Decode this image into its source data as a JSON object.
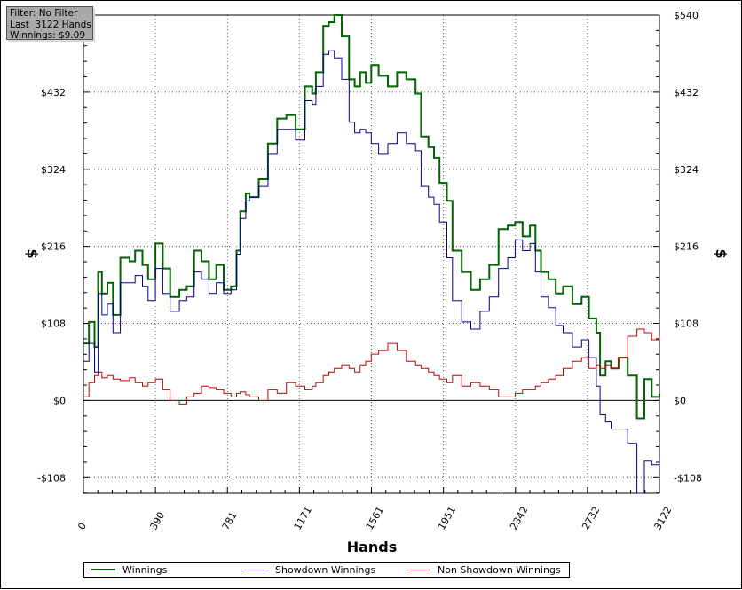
{
  "info_box": {
    "line1": "Filter: No Filter",
    "line2": "Last  3122 Hands",
    "line3": "Winnings: $9.09"
  },
  "chart_data": {
    "type": "line",
    "xlabel": "Hands",
    "ylabel": "$",
    "x_ticks": [
      0,
      390,
      781,
      1171,
      1561,
      1951,
      2342,
      2732,
      3122
    ],
    "y_ticks": [
      -108,
      0,
      108,
      216,
      324,
      432,
      540
    ],
    "y_tick_labels": [
      "-$108",
      "$0",
      "$108",
      "$216",
      "$324",
      "$432",
      "$540"
    ],
    "xlim": [
      0,
      3122
    ],
    "ylim": [
      -130,
      540
    ],
    "grid": true,
    "legend_position": "bottom",
    "series": [
      {
        "name": "Winnings",
        "color": "#006400",
        "x": [
          0,
          30,
          60,
          80,
          100,
          130,
          160,
          200,
          250,
          280,
          320,
          350,
          390,
          430,
          470,
          520,
          560,
          600,
          640,
          680,
          720,
          760,
          800,
          830,
          850,
          880,
          900,
          950,
          1000,
          1050,
          1100,
          1150,
          1200,
          1240,
          1260,
          1300,
          1330,
          1360,
          1400,
          1440,
          1470,
          1500,
          1530,
          1560,
          1600,
          1650,
          1700,
          1750,
          1800,
          1830,
          1870,
          1900,
          1930,
          1970,
          2000,
          2050,
          2100,
          2150,
          2200,
          2250,
          2300,
          2340,
          2380,
          2420,
          2450,
          2480,
          2520,
          2560,
          2600,
          2650,
          2700,
          2740,
          2780,
          2800,
          2830,
          2860,
          2900,
          2950,
          3000,
          3040,
          3080,
          3122
        ],
        "y": [
          80,
          110,
          75,
          180,
          150,
          165,
          120,
          200,
          195,
          210,
          190,
          170,
          220,
          185,
          145,
          155,
          160,
          210,
          195,
          170,
          190,
          155,
          160,
          210,
          265,
          290,
          285,
          310,
          360,
          395,
          400,
          380,
          440,
          430,
          460,
          525,
          530,
          540,
          510,
          450,
          440,
          460,
          445,
          470,
          455,
          440,
          460,
          450,
          430,
          370,
          355,
          340,
          305,
          280,
          210,
          180,
          155,
          170,
          190,
          240,
          245,
          250,
          230,
          245,
          210,
          180,
          170,
          150,
          160,
          135,
          145,
          115,
          95,
          35,
          55,
          45,
          60,
          35,
          -25,
          30,
          5,
          9.09
        ]
      },
      {
        "name": "Showdown Winnings",
        "color": "#00008b",
        "x": [
          0,
          30,
          60,
          80,
          100,
          130,
          160,
          200,
          250,
          280,
          320,
          350,
          390,
          430,
          470,
          520,
          560,
          600,
          640,
          680,
          720,
          760,
          800,
          830,
          850,
          880,
          900,
          950,
          1000,
          1050,
          1100,
          1150,
          1200,
          1240,
          1260,
          1300,
          1330,
          1360,
          1400,
          1440,
          1470,
          1500,
          1530,
          1560,
          1600,
          1650,
          1700,
          1750,
          1800,
          1830,
          1870,
          1900,
          1930,
          1970,
          2000,
          2050,
          2100,
          2150,
          2200,
          2250,
          2300,
          2340,
          2380,
          2420,
          2450,
          2480,
          2520,
          2560,
          2600,
          2650,
          2700,
          2740,
          2780,
          2800,
          2830,
          2860,
          2900,
          2950,
          3000,
          3040,
          3080,
          3122
        ],
        "y": [
          55,
          80,
          40,
          150,
          120,
          135,
          95,
          165,
          165,
          175,
          160,
          140,
          185,
          150,
          125,
          140,
          145,
          180,
          170,
          150,
          165,
          150,
          155,
          205,
          255,
          280,
          285,
          300,
          345,
          380,
          380,
          365,
          420,
          415,
          440,
          485,
          490,
          480,
          450,
          390,
          375,
          380,
          375,
          360,
          345,
          360,
          375,
          360,
          350,
          300,
          285,
          275,
          250,
          200,
          140,
          110,
          100,
          125,
          145,
          185,
          200,
          225,
          210,
          220,
          180,
          145,
          130,
          105,
          95,
          75,
          85,
          60,
          20,
          -20,
          -30,
          -40,
          -40,
          -60,
          -130,
          -85,
          -90,
          -80
        ]
      },
      {
        "name": "Non Showdown Winnings",
        "color": "#cc0000",
        "x": [
          0,
          30,
          60,
          80,
          100,
          130,
          160,
          200,
          250,
          280,
          320,
          350,
          390,
          430,
          470,
          520,
          560,
          600,
          640,
          680,
          720,
          760,
          800,
          830,
          850,
          880,
          900,
          950,
          1000,
          1050,
          1100,
          1150,
          1200,
          1240,
          1260,
          1300,
          1330,
          1360,
          1400,
          1440,
          1470,
          1500,
          1530,
          1560,
          1600,
          1650,
          1700,
          1750,
          1800,
          1830,
          1870,
          1900,
          1930,
          1970,
          2000,
          2050,
          2100,
          2150,
          2200,
          2250,
          2300,
          2340,
          2380,
          2420,
          2450,
          2480,
          2520,
          2560,
          2600,
          2650,
          2700,
          2740,
          2780,
          2800,
          2830,
          2860,
          2900,
          2950,
          3000,
          3040,
          3080,
          3122
        ],
        "y": [
          5,
          25,
          35,
          40,
          32,
          35,
          30,
          28,
          32,
          25,
          20,
          25,
          30,
          15,
          0,
          -5,
          5,
          10,
          20,
          18,
          15,
          10,
          5,
          10,
          12,
          8,
          5,
          0,
          15,
          10,
          25,
          20,
          15,
          20,
          25,
          35,
          40,
          45,
          50,
          45,
          40,
          50,
          55,
          65,
          70,
          80,
          70,
          55,
          50,
          45,
          40,
          35,
          30,
          25,
          35,
          20,
          25,
          20,
          15,
          5,
          5,
          10,
          15,
          15,
          20,
          25,
          30,
          35,
          45,
          55,
          60,
          45,
          50,
          45,
          50,
          45,
          60,
          90,
          100,
          95,
          85,
          90
        ]
      }
    ]
  }
}
